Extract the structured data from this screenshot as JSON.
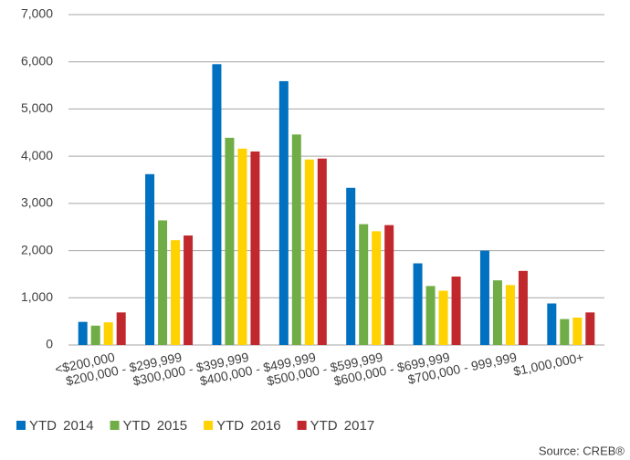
{
  "chart_data": {
    "type": "bar",
    "categories": [
      "<$200,000",
      "$200,000 - $299,999",
      "$300,000 - $399,999",
      "$400,000 - $499,999",
      "$500,000 - $599,999",
      "$600,000 - $699,999",
      "$700,000 - 999,999",
      "$1,000,000+"
    ],
    "series": [
      {
        "name": "YTD 2014",
        "color": "#0070c0",
        "values": [
          490,
          3620,
          5950,
          5590,
          3330,
          1730,
          2000,
          880
        ]
      },
      {
        "name": "YTD 2015",
        "color": "#70ad47",
        "values": [
          410,
          2640,
          4390,
          4460,
          2560,
          1250,
          1370,
          550
        ]
      },
      {
        "name": "YTD 2016",
        "color": "#ffd200",
        "values": [
          480,
          2220,
          4160,
          3930,
          2410,
          1150,
          1270,
          580
        ]
      },
      {
        "name": "YTD 2017",
        "color": "#c0282d",
        "values": [
          690,
          2320,
          4100,
          3950,
          2540,
          1450,
          1570,
          690
        ]
      }
    ],
    "ylim": [
      0,
      7000
    ],
    "yticks": [
      0,
      {
        "value": 1000,
        "label": "1,000"
      },
      {
        "value": 2000,
        "label": "2,000"
      },
      {
        "value": 3000,
        "label": "3,000"
      },
      {
        "value": 4000,
        "label": "4,000"
      },
      {
        "value": 5000,
        "label": "5,000"
      },
      {
        "value": 6000,
        "label": "6,000"
      },
      {
        "value": 7000,
        "label": "7,000"
      }
    ],
    "grid": true,
    "legend": "bottom",
    "source": "Source: CREB®"
  }
}
